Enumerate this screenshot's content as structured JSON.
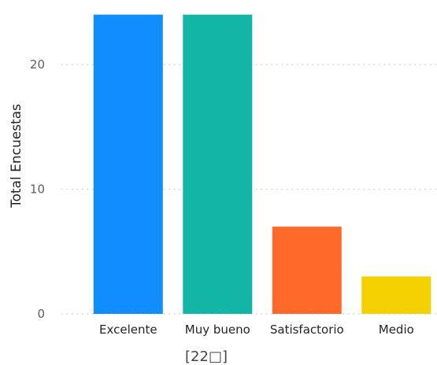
{
  "chart_data": {
    "type": "bar",
    "categories": [
      "Excelente",
      "Muy bueno",
      "Satisfactorio",
      "Medio"
    ],
    "values": [
      24,
      24,
      7,
      3
    ],
    "colors": [
      "#118DFF",
      "#12B5A6",
      "#FF6A2B",
      "#F5D000"
    ],
    "title": "",
    "xlabel": "",
    "ylabel": "Total Encuestas",
    "ylim": [
      0,
      24
    ],
    "yticks": [
      0,
      10,
      20
    ],
    "grid": true,
    "gridline_color": "#C8C6C4",
    "legend": "none"
  },
  "caption": "[22□]"
}
